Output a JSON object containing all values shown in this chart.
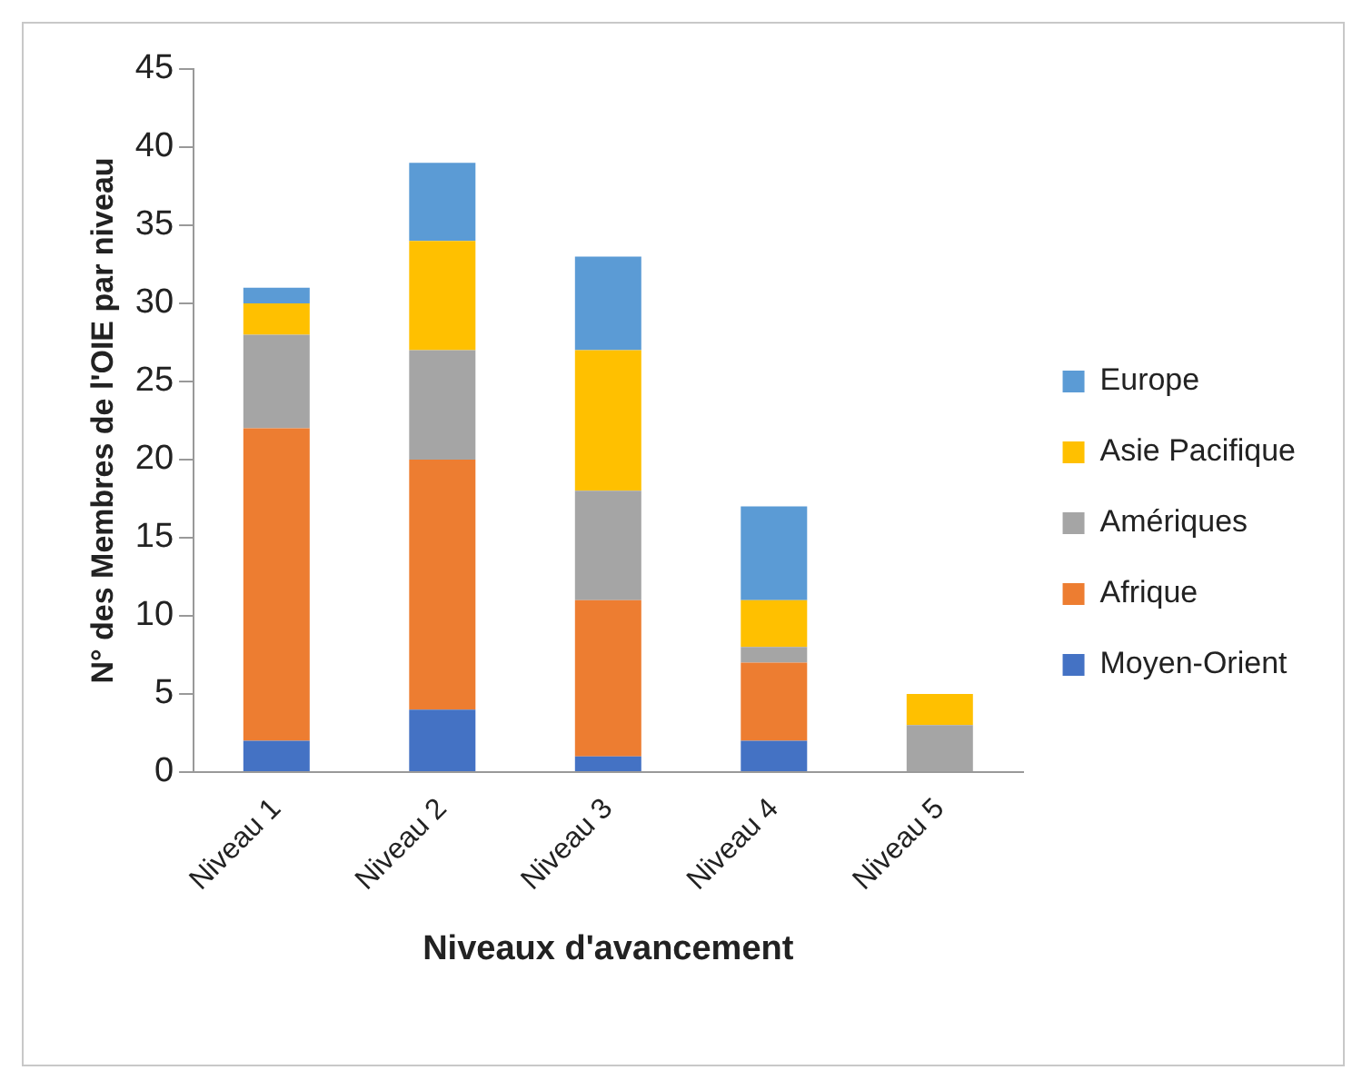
{
  "chart_data": {
    "type": "bar",
    "stacked": true,
    "xlabel": "Niveaux d'avancement",
    "ylabel": "N° des Membres de l'OIE par niveau",
    "categories": [
      "Niveau 1",
      "Niveau 2",
      "Niveau 3",
      "Niveau 4",
      "Niveau 5"
    ],
    "series": [
      {
        "name": "Moyen-Orient",
        "color": "#4472c4",
        "values": [
          2,
          4,
          1,
          2,
          0
        ]
      },
      {
        "name": "Afrique",
        "color": "#ed7d31",
        "values": [
          20,
          16,
          10,
          5,
          0
        ]
      },
      {
        "name": "Amériques",
        "color": "#a5a5a5",
        "values": [
          6,
          7,
          7,
          1,
          3
        ]
      },
      {
        "name": "Asie Pacifique",
        "color": "#ffc000",
        "values": [
          2,
          7,
          9,
          3,
          2
        ]
      },
      {
        "name": "Europe",
        "color": "#5b9bd5",
        "values": [
          1,
          5,
          6,
          6,
          0
        ]
      }
    ],
    "ylim": [
      0,
      45
    ],
    "yticks": [
      0,
      5,
      10,
      15,
      20,
      25,
      30,
      35,
      40,
      45
    ],
    "grid": false,
    "legend": "right"
  }
}
